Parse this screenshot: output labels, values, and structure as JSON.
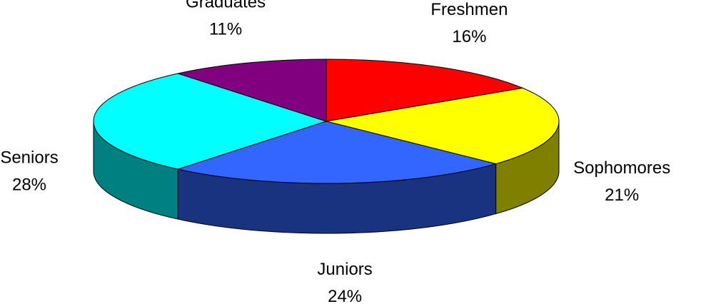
{
  "chart_data": {
    "type": "pie3d",
    "categories": [
      "Freshmen",
      "Sophomores",
      "Juniors",
      "Seniors",
      "Graduates"
    ],
    "values": [
      16,
      21,
      24,
      28,
      11
    ],
    "value_labels": [
      "16%",
      "21%",
      "24%",
      "28%",
      "11%"
    ],
    "colors": [
      "#ff0000",
      "#ffff00",
      "#3366ff",
      "#00ffff",
      "#800080"
    ]
  }
}
